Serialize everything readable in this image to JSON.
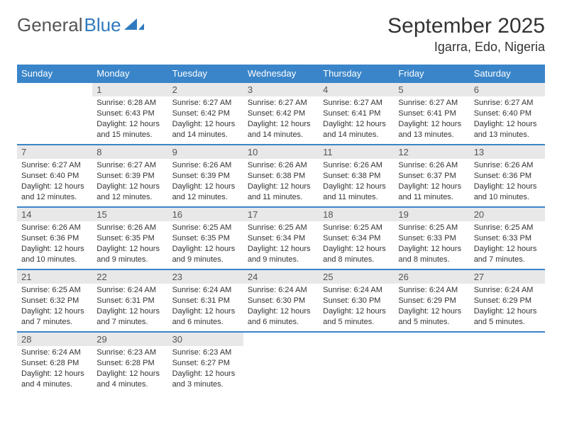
{
  "brand": {
    "part1": "General",
    "part2": "Blue"
  },
  "title": "September 2025",
  "location": "Igarra, Edo, Nigeria",
  "colors": {
    "header_bg": "#3a85c9",
    "header_text": "#ffffff",
    "daynum_bg": "#e8e8e8",
    "border": "#3a85c9",
    "brand_blue": "#2f7abf"
  },
  "weekdays": [
    "Sunday",
    "Monday",
    "Tuesday",
    "Wednesday",
    "Thursday",
    "Friday",
    "Saturday"
  ],
  "weeks": [
    [
      null,
      {
        "n": "1",
        "sr": "Sunrise: 6:28 AM",
        "ss": "Sunset: 6:43 PM",
        "dl": "Daylight: 12 hours and 15 minutes."
      },
      {
        "n": "2",
        "sr": "Sunrise: 6:27 AM",
        "ss": "Sunset: 6:42 PM",
        "dl": "Daylight: 12 hours and 14 minutes."
      },
      {
        "n": "3",
        "sr": "Sunrise: 6:27 AM",
        "ss": "Sunset: 6:42 PM",
        "dl": "Daylight: 12 hours and 14 minutes."
      },
      {
        "n": "4",
        "sr": "Sunrise: 6:27 AM",
        "ss": "Sunset: 6:41 PM",
        "dl": "Daylight: 12 hours and 14 minutes."
      },
      {
        "n": "5",
        "sr": "Sunrise: 6:27 AM",
        "ss": "Sunset: 6:41 PM",
        "dl": "Daylight: 12 hours and 13 minutes."
      },
      {
        "n": "6",
        "sr": "Sunrise: 6:27 AM",
        "ss": "Sunset: 6:40 PM",
        "dl": "Daylight: 12 hours and 13 minutes."
      }
    ],
    [
      {
        "n": "7",
        "sr": "Sunrise: 6:27 AM",
        "ss": "Sunset: 6:40 PM",
        "dl": "Daylight: 12 hours and 12 minutes."
      },
      {
        "n": "8",
        "sr": "Sunrise: 6:27 AM",
        "ss": "Sunset: 6:39 PM",
        "dl": "Daylight: 12 hours and 12 minutes."
      },
      {
        "n": "9",
        "sr": "Sunrise: 6:26 AM",
        "ss": "Sunset: 6:39 PM",
        "dl": "Daylight: 12 hours and 12 minutes."
      },
      {
        "n": "10",
        "sr": "Sunrise: 6:26 AM",
        "ss": "Sunset: 6:38 PM",
        "dl": "Daylight: 12 hours and 11 minutes."
      },
      {
        "n": "11",
        "sr": "Sunrise: 6:26 AM",
        "ss": "Sunset: 6:38 PM",
        "dl": "Daylight: 12 hours and 11 minutes."
      },
      {
        "n": "12",
        "sr": "Sunrise: 6:26 AM",
        "ss": "Sunset: 6:37 PM",
        "dl": "Daylight: 12 hours and 11 minutes."
      },
      {
        "n": "13",
        "sr": "Sunrise: 6:26 AM",
        "ss": "Sunset: 6:36 PM",
        "dl": "Daylight: 12 hours and 10 minutes."
      }
    ],
    [
      {
        "n": "14",
        "sr": "Sunrise: 6:26 AM",
        "ss": "Sunset: 6:36 PM",
        "dl": "Daylight: 12 hours and 10 minutes."
      },
      {
        "n": "15",
        "sr": "Sunrise: 6:26 AM",
        "ss": "Sunset: 6:35 PM",
        "dl": "Daylight: 12 hours and 9 minutes."
      },
      {
        "n": "16",
        "sr": "Sunrise: 6:25 AM",
        "ss": "Sunset: 6:35 PM",
        "dl": "Daylight: 12 hours and 9 minutes."
      },
      {
        "n": "17",
        "sr": "Sunrise: 6:25 AM",
        "ss": "Sunset: 6:34 PM",
        "dl": "Daylight: 12 hours and 9 minutes."
      },
      {
        "n": "18",
        "sr": "Sunrise: 6:25 AM",
        "ss": "Sunset: 6:34 PM",
        "dl": "Daylight: 12 hours and 8 minutes."
      },
      {
        "n": "19",
        "sr": "Sunrise: 6:25 AM",
        "ss": "Sunset: 6:33 PM",
        "dl": "Daylight: 12 hours and 8 minutes."
      },
      {
        "n": "20",
        "sr": "Sunrise: 6:25 AM",
        "ss": "Sunset: 6:33 PM",
        "dl": "Daylight: 12 hours and 7 minutes."
      }
    ],
    [
      {
        "n": "21",
        "sr": "Sunrise: 6:25 AM",
        "ss": "Sunset: 6:32 PM",
        "dl": "Daylight: 12 hours and 7 minutes."
      },
      {
        "n": "22",
        "sr": "Sunrise: 6:24 AM",
        "ss": "Sunset: 6:31 PM",
        "dl": "Daylight: 12 hours and 7 minutes."
      },
      {
        "n": "23",
        "sr": "Sunrise: 6:24 AM",
        "ss": "Sunset: 6:31 PM",
        "dl": "Daylight: 12 hours and 6 minutes."
      },
      {
        "n": "24",
        "sr": "Sunrise: 6:24 AM",
        "ss": "Sunset: 6:30 PM",
        "dl": "Daylight: 12 hours and 6 minutes."
      },
      {
        "n": "25",
        "sr": "Sunrise: 6:24 AM",
        "ss": "Sunset: 6:30 PM",
        "dl": "Daylight: 12 hours and 5 minutes."
      },
      {
        "n": "26",
        "sr": "Sunrise: 6:24 AM",
        "ss": "Sunset: 6:29 PM",
        "dl": "Daylight: 12 hours and 5 minutes."
      },
      {
        "n": "27",
        "sr": "Sunrise: 6:24 AM",
        "ss": "Sunset: 6:29 PM",
        "dl": "Daylight: 12 hours and 5 minutes."
      }
    ],
    [
      {
        "n": "28",
        "sr": "Sunrise: 6:24 AM",
        "ss": "Sunset: 6:28 PM",
        "dl": "Daylight: 12 hours and 4 minutes."
      },
      {
        "n": "29",
        "sr": "Sunrise: 6:23 AM",
        "ss": "Sunset: 6:28 PM",
        "dl": "Daylight: 12 hours and 4 minutes."
      },
      {
        "n": "30",
        "sr": "Sunrise: 6:23 AM",
        "ss": "Sunset: 6:27 PM",
        "dl": "Daylight: 12 hours and 3 minutes."
      },
      null,
      null,
      null,
      null
    ]
  ]
}
